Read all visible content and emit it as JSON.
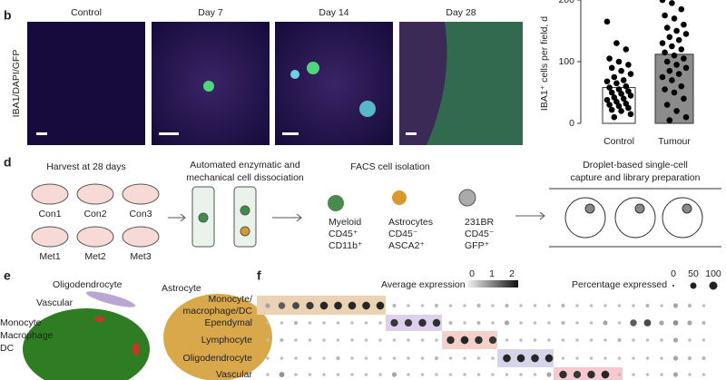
{
  "panel_b": {
    "letter": "b",
    "stain_label": "IBA1/DAPI/GFP",
    "images": [
      "Control",
      "Day 7",
      "Day 14",
      "Day 28"
    ]
  },
  "chart_data": {
    "type": "bar",
    "categories": [
      "Control",
      "Tumour"
    ],
    "values": [
      58,
      112
    ],
    "colors": [
      "#ffffff",
      "#8c8c8c"
    ],
    "points": [
      [
        165,
        130,
        120,
        105,
        100,
        95,
        90,
        85,
        80,
        75,
        70,
        68,
        65,
        60,
        58,
        55,
        52,
        50,
        48,
        45,
        42,
        40,
        38,
        35,
        32,
        30,
        28,
        25,
        22,
        20,
        15,
        10
      ],
      [
        200,
        195,
        185,
        175,
        170,
        160,
        155,
        150,
        145,
        140,
        135,
        130,
        125,
        120,
        115,
        110,
        105,
        100,
        95,
        90,
        85,
        80,
        75,
        70,
        60,
        55,
        50,
        40,
        30,
        20,
        10,
        5
      ]
    ],
    "ylim": [
      0,
      200
    ],
    "yticks": [
      0,
      100,
      200
    ],
    "y_label": "IBA1⁺ cells per field, d"
  },
  "panel_d": {
    "letter": "d",
    "harvest": "Harvest at 28 days",
    "mice": [
      "Con1",
      "Con2",
      "Con3",
      "Met1",
      "Met2",
      "Met3"
    ],
    "dissociation": [
      "Automated enzymatic and",
      "mechanical cell dissociation"
    ],
    "facs": "FACS cell isolation",
    "cells": [
      [
        "Myeloid",
        "CD45⁺",
        "CD11b⁺"
      ],
      [
        "Astrocytes",
        "CD45⁻",
        "ASCA2⁺"
      ],
      [
        "231BR",
        "CD45⁻",
        "GFP⁺"
      ]
    ],
    "capture": [
      "Droplet-based single-cell",
      "capture and library preparation"
    ]
  },
  "panel_e": {
    "letter": "e",
    "clusters": [
      [
        "Oligodendrocyte"
      ],
      [
        "Astrocyte"
      ],
      [
        "Vascular"
      ],
      [
        "Monocyte",
        "Macrophage",
        "DC"
      ]
    ]
  },
  "panel_f": {
    "letter": "f",
    "avg_label": "Average expression",
    "avg_ticks": [
      0,
      1,
      2
    ],
    "pct_label": "Percentage expressed",
    "pct_ticks": [
      0,
      50,
      100
    ],
    "rows": [
      [
        "Monocyte/",
        "macrophage/DC"
      ],
      [
        "Ependymal"
      ],
      [
        "Lymphocyte"
      ],
      [
        "Oligodendrocyte"
      ],
      [
        "Vascular"
      ]
    ],
    "percent": [
      [
        20,
        60,
        70,
        80,
        90,
        90,
        90,
        90,
        90,
        10,
        5,
        5,
        10,
        5,
        5,
        10,
        5,
        10,
        5,
        5,
        5,
        10,
        5,
        5,
        5,
        5,
        5,
        10,
        5,
        20,
        10,
        5
      ],
      [
        5,
        5,
        10,
        5,
        5,
        5,
        5,
        5,
        5,
        80,
        80,
        85,
        85,
        10,
        5,
        10,
        5,
        20,
        5,
        5,
        5,
        10,
        5,
        5,
        20,
        5,
        60,
        70,
        20,
        30,
        20,
        10
      ],
      [
        5,
        10,
        5,
        5,
        5,
        5,
        5,
        5,
        5,
        5,
        5,
        5,
        5,
        85,
        90,
        85,
        80,
        5,
        5,
        5,
        5,
        5,
        5,
        5,
        5,
        10,
        5,
        5,
        5,
        20,
        5,
        5
      ],
      [
        5,
        5,
        5,
        5,
        5,
        10,
        5,
        5,
        5,
        5,
        5,
        5,
        10,
        5,
        5,
        5,
        5,
        90,
        90,
        90,
        90,
        5,
        5,
        5,
        5,
        5,
        5,
        5,
        5,
        20,
        10,
        10
      ],
      [
        5,
        30,
        5,
        5,
        5,
        5,
        5,
        5,
        5,
        20,
        5,
        5,
        5,
        5,
        5,
        5,
        5,
        5,
        5,
        5,
        20,
        85,
        80,
        85,
        90,
        5,
        5,
        5,
        5,
        20,
        5,
        5
      ]
    ]
  }
}
